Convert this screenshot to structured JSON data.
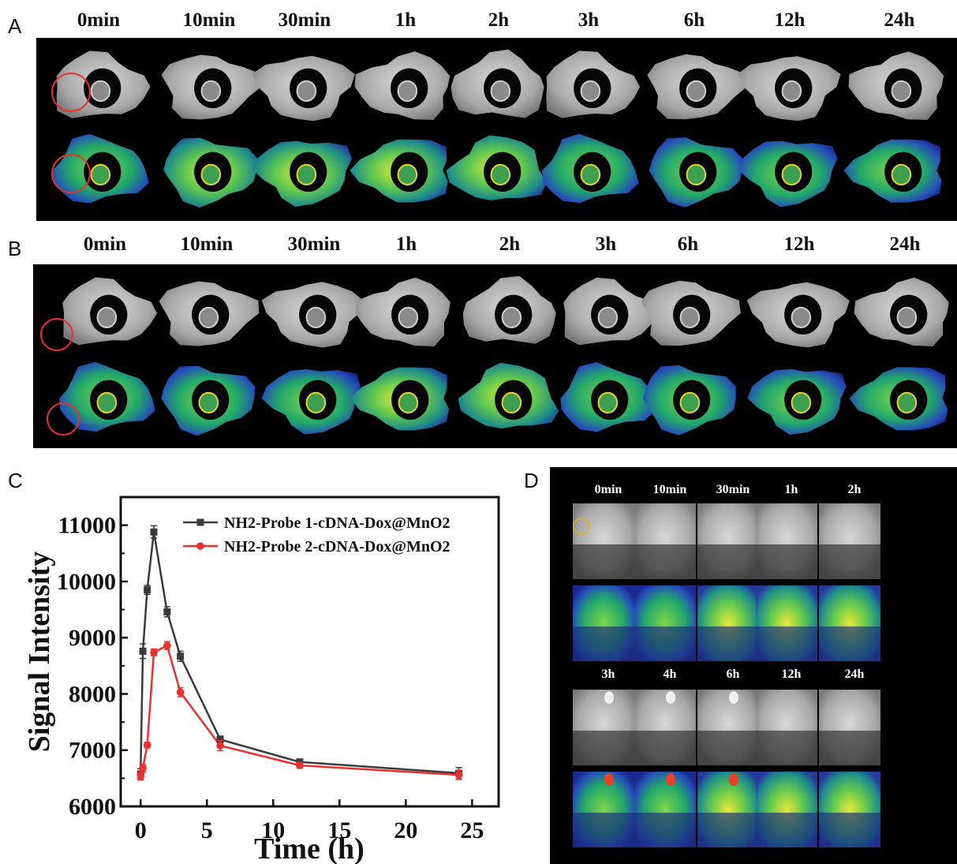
{
  "panels": {
    "a": {
      "letter": "A",
      "times": [
        "0min",
        "10min",
        "30min",
        "1h",
        "2h",
        "3h",
        "6h",
        "12h",
        "24h"
      ]
    },
    "b": {
      "letter": "B",
      "times": [
        "0min",
        "10min",
        "30min",
        "1h",
        "2h",
        "3h",
        "6h",
        "12h",
        "24h"
      ]
    },
    "c": {
      "letter": "C"
    },
    "d": {
      "letter": "D",
      "times_top": [
        "0min",
        "10min",
        "30min",
        "1h",
        "2h"
      ],
      "times_bottom": [
        "3h",
        "4h",
        "6h",
        "12h",
        "24h"
      ]
    }
  },
  "colors": {
    "series1": "#3a3a3a",
    "series2": "#e8322f",
    "roi_red": "#e8322f",
    "roi_yellow": "#e0b020"
  },
  "chart_data": {
    "type": "line",
    "title": "",
    "xlabel": "Time (h)",
    "ylabel": "Signal Intensity",
    "xlim": [
      -1.5,
      27
    ],
    "ylim": [
      6000,
      11500
    ],
    "xticks": [
      0,
      5,
      10,
      15,
      20,
      25
    ],
    "yticks": [
      6000,
      7000,
      8000,
      9000,
      10000,
      11000
    ],
    "legend_position": "top-right",
    "series": [
      {
        "name": "NH2-Probe 1-cDNA-Dox@MnO2",
        "marker": "square",
        "x": [
          0,
          0.17,
          0.5,
          1,
          2,
          3,
          6,
          12,
          24
        ],
        "y": [
          6580,
          8760,
          9850,
          10880,
          9460,
          8670,
          7190,
          6790,
          6590
        ],
        "err": [
          90,
          130,
          80,
          110,
          90,
          90,
          60,
          50,
          100
        ]
      },
      {
        "name": "NH2-Probe 2-cDNA-Dox@MnO2",
        "marker": "circle",
        "x": [
          0,
          0.17,
          0.5,
          1,
          2,
          3,
          6,
          12,
          24
        ],
        "y": [
          6550,
          6680,
          7090,
          8740,
          8860,
          8030,
          7080,
          6730,
          6560
        ],
        "err": [
          80,
          70,
          50,
          60,
          70,
          80,
          90,
          50,
          80
        ]
      }
    ]
  }
}
